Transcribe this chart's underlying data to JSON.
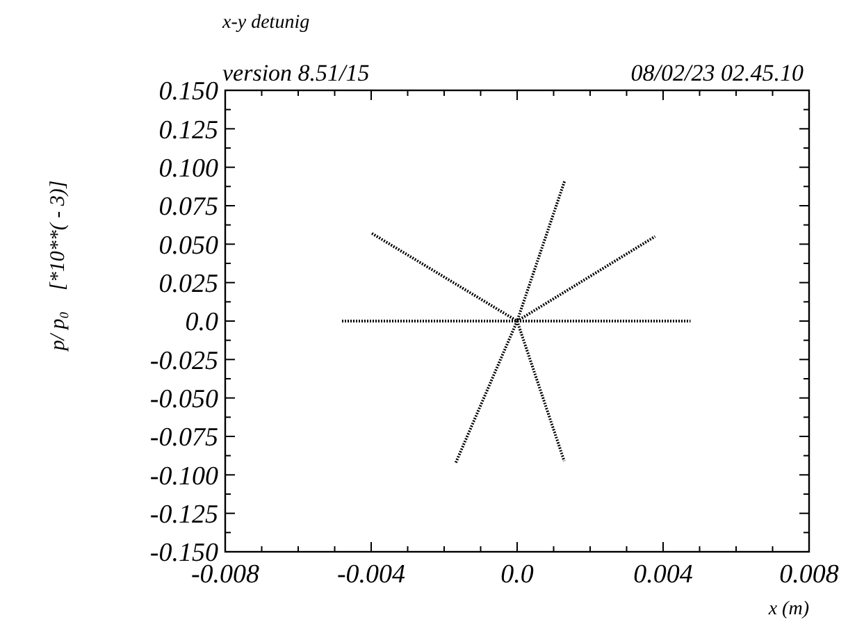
{
  "chart_data": {
    "type": "line",
    "title": "x-y detunig",
    "xlabel": "x (m)",
    "ylabel": "p/ p₀    [*10**( - 3)]",
    "annotations": [
      "version 8.51/15",
      "08/02/23  02.45.10"
    ],
    "xlim": [
      -0.008,
      0.008
    ],
    "ylim": [
      -0.15,
      0.15
    ],
    "xticks": [
      {
        "value": -0.008,
        "label": "-0.008"
      },
      {
        "value": -0.007,
        "label": null
      },
      {
        "value": -0.006,
        "label": null
      },
      {
        "value": -0.005,
        "label": null
      },
      {
        "value": -0.004,
        "label": "-0.004"
      },
      {
        "value": -0.003,
        "label": null
      },
      {
        "value": -0.002,
        "label": null
      },
      {
        "value": -0.001,
        "label": null
      },
      {
        "value": 0,
        "label": "0.0"
      },
      {
        "value": 0.001,
        "label": null
      },
      {
        "value": 0.002,
        "label": null
      },
      {
        "value": 0.003,
        "label": null
      },
      {
        "value": 0.004,
        "label": "0.004"
      },
      {
        "value": 0.005,
        "label": null
      },
      {
        "value": 0.006,
        "label": null
      },
      {
        "value": 0.007,
        "label": null
      },
      {
        "value": 0.008,
        "label": "0.008"
      }
    ],
    "yticks": [
      {
        "value": 0.15,
        "label": "0.150"
      },
      {
        "value": 0.1375,
        "label": null
      },
      {
        "value": 0.125,
        "label": "0.125"
      },
      {
        "value": 0.1125,
        "label": null
      },
      {
        "value": 0.1,
        "label": "0.100"
      },
      {
        "value": 0.0875,
        "label": null
      },
      {
        "value": 0.075,
        "label": "0.075"
      },
      {
        "value": 0.0625,
        "label": null
      },
      {
        "value": 0.05,
        "label": "0.050"
      },
      {
        "value": 0.0375,
        "label": null
      },
      {
        "value": 0.025,
        "label": "0.025"
      },
      {
        "value": 0.0125,
        "label": null
      },
      {
        "value": 0,
        "label": "0.0"
      },
      {
        "value": -0.0125,
        "label": null
      },
      {
        "value": -0.025,
        "label": "-0.025"
      },
      {
        "value": -0.0375,
        "label": null
      },
      {
        "value": -0.05,
        "label": "-0.050"
      },
      {
        "value": -0.0625,
        "label": null
      },
      {
        "value": -0.075,
        "label": "-0.075"
      },
      {
        "value": -0.0875,
        "label": null
      },
      {
        "value": -0.1,
        "label": "-0.100"
      },
      {
        "value": -0.1125,
        "label": null
      },
      {
        "value": -0.125,
        "label": "-0.125"
      },
      {
        "value": -0.1375,
        "label": null
      },
      {
        "value": -0.15,
        "label": "-0.150"
      }
    ],
    "grid": false,
    "marker": "none",
    "line_style": "dotted",
    "series": [
      {
        "color": "#000000",
        "x": [
          -0.0048,
          0.00475
        ],
        "values": [
          0,
          0
        ]
      },
      {
        "color": "#000000",
        "x": [
          -0.00398,
          0,
          0.00378
        ],
        "values": [
          0.057,
          0,
          0.055
        ]
      },
      {
        "color": "#000000",
        "x": [
          -0.00168,
          0,
          0.0013
        ],
        "values": [
          -0.092,
          0,
          0.091
        ]
      },
      {
        "color": "#000000",
        "x": [
          0,
          0.00129
        ],
        "values": [
          0,
          -0.091
        ]
      }
    ]
  }
}
